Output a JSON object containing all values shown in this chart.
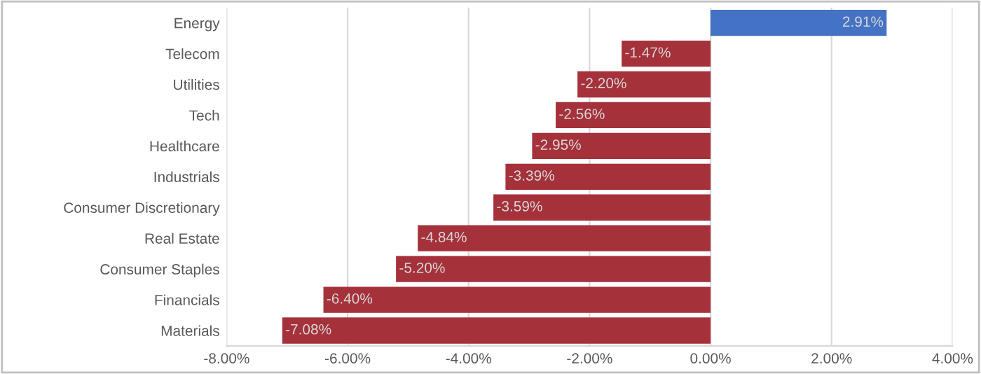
{
  "chart_data": {
    "type": "bar",
    "orientation": "horizontal",
    "categories": [
      "Energy",
      "Telecom",
      "Utilities",
      "Tech",
      "Healthcare",
      "Industrials",
      "Consumer Discretionary",
      "Real Estate",
      "Consumer Staples",
      "Financials",
      "Materials"
    ],
    "values": [
      2.91,
      -1.47,
      -2.2,
      -2.56,
      -2.95,
      -3.39,
      -3.59,
      -4.84,
      -5.2,
      -6.4,
      -7.08
    ],
    "colors": [
      "#4472c4",
      "#a5313b",
      "#a5313b",
      "#a5313b",
      "#a5313b",
      "#a5313b",
      "#a5313b",
      "#a5313b",
      "#a5313b",
      "#a5313b",
      "#a5313b"
    ],
    "value_labels": [
      "2.91%",
      "-1.47%",
      "-2.20%",
      "-2.56%",
      "-2.95%",
      "-3.39%",
      "-3.59%",
      "-4.84%",
      "-5.20%",
      "-6.40%",
      "-7.08%"
    ],
    "xlim": [
      -8,
      4
    ],
    "xticks": [
      {
        "value": -8,
        "label": "-8.00%"
      },
      {
        "value": -6,
        "label": "-6.00%"
      },
      {
        "value": -4,
        "label": "-4.00%"
      },
      {
        "value": -2,
        "label": "-2.00%"
      },
      {
        "value": 0,
        "label": "0.00%"
      },
      {
        "value": 2,
        "label": "2.00%"
      },
      {
        "value": 4,
        "label": "4.00%"
      }
    ],
    "grid": "x",
    "legend": false
  }
}
